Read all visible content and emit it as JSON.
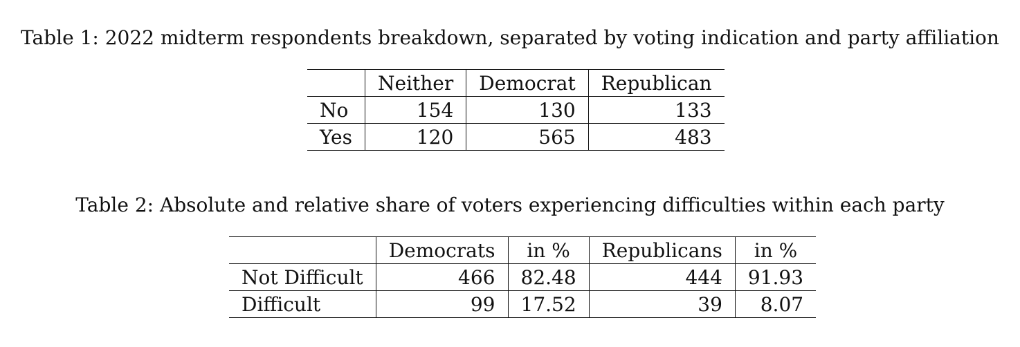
{
  "table1": {
    "caption": "Table 1:  2022 midterm respondents breakdown, separated by voting indication and party affiliation",
    "columns": [
      "",
      "Neither",
      "Democrat",
      "Republican"
    ],
    "rows": [
      {
        "label": "No",
        "values": [
          "154",
          "130",
          "133"
        ]
      },
      {
        "label": "Yes",
        "values": [
          "120",
          "565",
          "483"
        ]
      }
    ]
  },
  "table2": {
    "caption": "Table 2:  Absolute and relative share of voters experiencing difficulties within each party",
    "columns": [
      "",
      "Democrats",
      "in %",
      "Republicans",
      "in %"
    ],
    "rows": [
      {
        "label": "Not Difficult",
        "values": [
          "466",
          "82.48",
          "444",
          "91.93"
        ]
      },
      {
        "label": "Difficult",
        "values": [
          "99",
          "17.52",
          "39",
          "8.07"
        ]
      }
    ]
  }
}
